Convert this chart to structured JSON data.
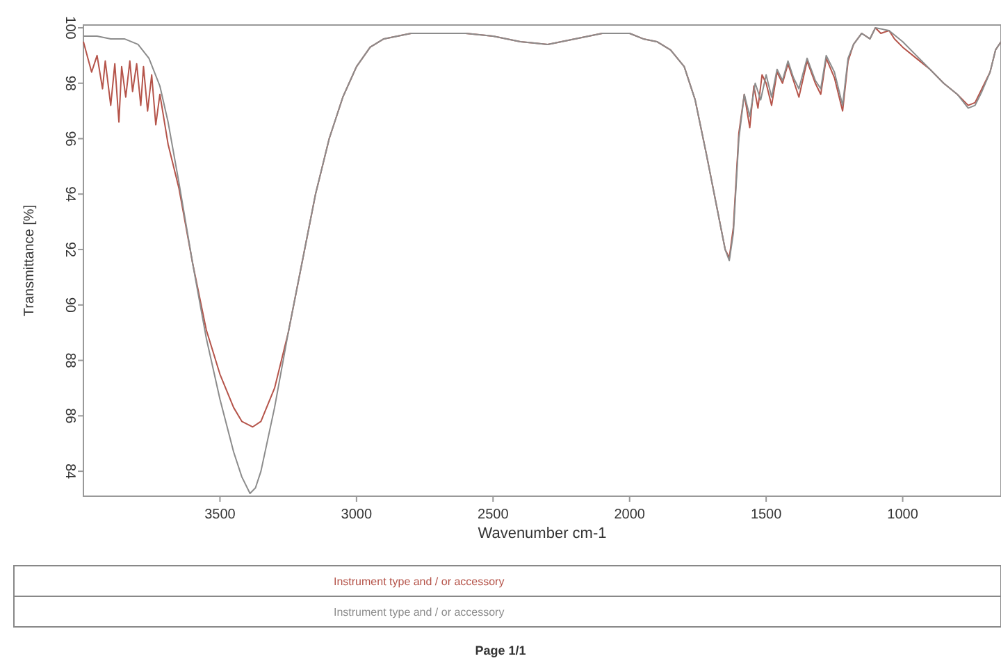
{
  "chart_data": {
    "type": "line",
    "xlabel": "Wavenumber cm-1",
    "ylabel": "Transmittance [%]",
    "xlim": [
      4000,
      640
    ],
    "xticks": [
      3500,
      3000,
      2500,
      2000,
      1500,
      1000
    ],
    "ylim": [
      83.1,
      100.1
    ],
    "yticks": [
      84,
      86,
      88,
      90,
      92,
      94,
      96,
      98,
      100
    ],
    "line_style": "solid",
    "series": [
      {
        "color": "#b5544a",
        "x": [
          4000,
          3970,
          3950,
          3930,
          3920,
          3900,
          3885,
          3870,
          3860,
          3845,
          3830,
          3820,
          3805,
          3790,
          3780,
          3765,
          3750,
          3735,
          3720,
          3690,
          3650,
          3600,
          3550,
          3500,
          3450,
          3420,
          3380,
          3350,
          3300,
          3250,
          3200,
          3150,
          3100,
          3050,
          3000,
          2950,
          2900,
          2800,
          2600,
          2500,
          2400,
          2300,
          2200,
          2100,
          2000,
          1950,
          1900,
          1850,
          1800,
          1760,
          1720,
          1680,
          1650,
          1635,
          1620,
          1600,
          1580,
          1560,
          1545,
          1530,
          1515,
          1500,
          1480,
          1460,
          1440,
          1420,
          1400,
          1380,
          1350,
          1320,
          1300,
          1280,
          1250,
          1220,
          1200,
          1180,
          1150,
          1120,
          1100,
          1080,
          1050,
          1030,
          1000,
          950,
          900,
          850,
          800,
          760,
          735,
          710,
          680,
          660,
          640
        ],
        "values": [
          99.5,
          98.4,
          99.0,
          97.8,
          98.8,
          97.2,
          98.7,
          96.6,
          98.6,
          97.5,
          98.8,
          97.7,
          98.7,
          97.2,
          98.6,
          97.0,
          98.3,
          96.5,
          97.6,
          95.8,
          94.2,
          91.5,
          89.1,
          87.5,
          86.3,
          85.8,
          85.6,
          85.8,
          87.0,
          89.0,
          91.5,
          94.0,
          96.0,
          97.5,
          98.6,
          99.3,
          99.6,
          99.8,
          99.8,
          99.7,
          99.5,
          99.4,
          99.6,
          99.8,
          99.8,
          99.6,
          99.5,
          99.2,
          98.6,
          97.4,
          95.5,
          93.5,
          92.0,
          91.7,
          92.8,
          96.2,
          97.6,
          96.4,
          97.9,
          97.1,
          98.3,
          98.0,
          97.2,
          98.4,
          98.0,
          98.7,
          98.1,
          97.5,
          98.8,
          98.0,
          97.6,
          98.9,
          98.2,
          97.0,
          98.8,
          99.4,
          99.8,
          99.6,
          100.0,
          99.8,
          99.9,
          99.6,
          99.3,
          98.9,
          98.5,
          98.0,
          97.6,
          97.2,
          97.3,
          97.8,
          98.4,
          99.2,
          99.5
        ]
      },
      {
        "color": "#8c8c8c",
        "x": [
          4000,
          3950,
          3900,
          3850,
          3800,
          3760,
          3720,
          3690,
          3650,
          3600,
          3550,
          3500,
          3450,
          3420,
          3390,
          3370,
          3350,
          3300,
          3250,
          3200,
          3150,
          3100,
          3050,
          3000,
          2950,
          2900,
          2800,
          2600,
          2500,
          2400,
          2300,
          2200,
          2100,
          2000,
          1950,
          1900,
          1850,
          1800,
          1760,
          1720,
          1680,
          1650,
          1635,
          1620,
          1600,
          1580,
          1560,
          1540,
          1520,
          1500,
          1480,
          1460,
          1440,
          1420,
          1400,
          1380,
          1350,
          1320,
          1300,
          1280,
          1250,
          1220,
          1200,
          1180,
          1150,
          1120,
          1100,
          1050,
          1000,
          950,
          900,
          850,
          800,
          760,
          735,
          710,
          680,
          660,
          640
        ],
        "values": [
          99.7,
          99.7,
          99.6,
          99.6,
          99.4,
          98.9,
          97.9,
          96.6,
          94.4,
          91.5,
          88.8,
          86.6,
          84.7,
          83.8,
          83.2,
          83.4,
          84.0,
          86.3,
          89.0,
          91.5,
          94.0,
          96.0,
          97.5,
          98.6,
          99.3,
          99.6,
          99.8,
          99.8,
          99.7,
          99.5,
          99.4,
          99.6,
          99.8,
          99.8,
          99.6,
          99.5,
          99.2,
          98.6,
          97.4,
          95.5,
          93.5,
          92.0,
          91.6,
          92.6,
          96.0,
          97.6,
          96.8,
          98.0,
          97.4,
          98.3,
          97.5,
          98.5,
          98.1,
          98.8,
          98.2,
          97.8,
          98.9,
          98.1,
          97.8,
          99.0,
          98.4,
          97.2,
          98.9,
          99.4,
          99.8,
          99.6,
          100.0,
          99.9,
          99.5,
          99.0,
          98.5,
          98.0,
          97.6,
          97.1,
          97.2,
          97.7,
          98.4,
          99.2,
          99.5
        ]
      }
    ],
    "annotations": [
      "Instrument type and / or accessory",
      "Instrument type and / or accessory",
      "Page 1/1"
    ]
  }
}
